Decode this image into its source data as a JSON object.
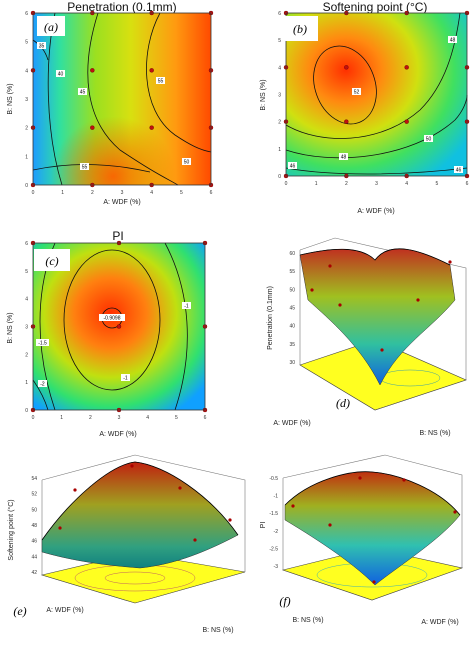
{
  "chart_data": [
    {
      "panel": "(a)",
      "type": "heatmap",
      "title": "Penetration  (0.1mm)",
      "xlabel": "A: WDF (%)",
      "ylabel": "B: NS (%)",
      "xlim": [
        0,
        6
      ],
      "ylim": [
        0,
        6
      ],
      "x_ticks": [
        "0",
        "1",
        "2",
        "3",
        "4",
        "5",
        "6"
      ],
      "y_ticks": [
        "0",
        "1",
        "2",
        "3",
        "4",
        "5",
        "6"
      ],
      "contour_labels": [
        "35",
        "40",
        "45",
        "55",
        "55",
        "50"
      ],
      "design_points": [
        [
          0,
          0
        ],
        [
          2,
          0
        ],
        [
          4,
          0
        ],
        [
          6,
          0
        ],
        [
          0,
          2
        ],
        [
          2,
          2
        ],
        [
          4,
          2
        ],
        [
          6,
          2
        ],
        [
          0,
          4
        ],
        [
          2,
          4
        ],
        [
          4,
          4
        ],
        [
          6,
          4
        ],
        [
          0,
          6
        ],
        [
          2,
          6
        ],
        [
          4,
          6
        ],
        [
          6,
          6
        ]
      ]
    },
    {
      "panel": "(b)",
      "type": "heatmap",
      "title": "Softening point (°C)",
      "xlabel": "A: WDF (%)",
      "ylabel": "B: NS (%)",
      "xlim": [
        0,
        6
      ],
      "ylim": [
        0,
        6
      ],
      "x_ticks": [
        "0",
        "1",
        "2",
        "3",
        "4",
        "5",
        "6"
      ],
      "y_ticks": [
        "0",
        "1",
        "2",
        "3",
        "4",
        "5",
        "6"
      ],
      "contour_labels": [
        "48",
        "52",
        "50",
        "48",
        "46",
        "46"
      ],
      "design_points": [
        [
          0,
          0
        ],
        [
          2,
          0
        ],
        [
          4,
          0
        ],
        [
          6,
          0
        ],
        [
          0,
          2
        ],
        [
          2,
          2
        ],
        [
          4,
          2
        ],
        [
          6,
          2
        ],
        [
          0,
          4
        ],
        [
          2,
          4
        ],
        [
          4,
          4
        ],
        [
          6,
          4
        ],
        [
          0,
          6
        ],
        [
          2,
          6
        ],
        [
          4,
          6
        ],
        [
          6,
          6
        ]
      ]
    },
    {
      "panel": "(c)",
      "type": "heatmap",
      "title": "PI",
      "xlabel": "A: WDF (%)",
      "ylabel": "B: NS (%)",
      "xlim": [
        0,
        6
      ],
      "ylim": [
        0,
        6
      ],
      "x_ticks": [
        "0",
        "1",
        "2",
        "3",
        "4",
        "5",
        "6"
      ],
      "y_ticks": [
        "0",
        "1",
        "2",
        "3",
        "4",
        "5",
        "6"
      ],
      "contour_labels": [
        "-0.9098",
        "-1",
        "-1",
        "-1.5",
        "-2"
      ],
      "design_points": [
        [
          0,
          0
        ],
        [
          3,
          0
        ],
        [
          6,
          0
        ],
        [
          0,
          3
        ],
        [
          3,
          3
        ],
        [
          6,
          3
        ],
        [
          0,
          6
        ],
        [
          3,
          6
        ],
        [
          6,
          6
        ]
      ]
    },
    {
      "panel": "(d)",
      "type": "surface",
      "zlabel": "Penetration  (0.1mm)",
      "xlabel": "A: WDF (%)",
      "ylabel": "B: NS (%)",
      "z_ticks": [
        "30",
        "35",
        "40",
        "45",
        "50",
        "55",
        "60"
      ],
      "zlim": [
        30,
        60
      ]
    },
    {
      "panel": "(e)",
      "type": "surface",
      "zlabel": "Softening point (°C)",
      "xlabel": "A: WDF (%)",
      "ylabel": "B: NS (%)",
      "z_ticks": [
        "42",
        "44",
        "46",
        "48",
        "50",
        "52",
        "54"
      ],
      "zlim": [
        42,
        54
      ]
    },
    {
      "panel": "(f)",
      "type": "surface",
      "zlabel": "PI",
      "xlabel": "A: WDF (%)",
      "ylabel": "B: NS (%)",
      "z_ticks": [
        "-3",
        "-2.5",
        "-2",
        "-1.5",
        "-1",
        "-0.5"
      ],
      "zlim": [
        -3,
        -0.5
      ]
    }
  ]
}
